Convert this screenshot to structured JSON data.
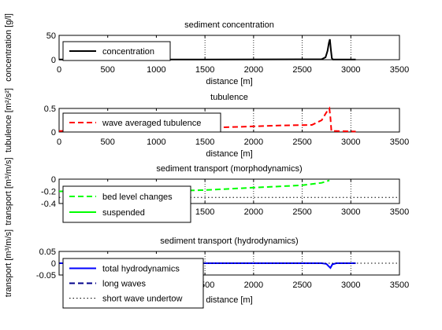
{
  "chart_data": [
    {
      "type": "line",
      "title": "sediment concentration",
      "xlabel": "distance [m]",
      "ylabel": "concentration [g/l]",
      "xlim": [
        0,
        3500
      ],
      "ylim": [
        0,
        50
      ],
      "xticks": [
        "0",
        "500",
        "1000",
        "1500",
        "2000",
        "2500",
        "3000",
        "3500"
      ],
      "yticks": [
        "0",
        "50"
      ],
      "grid_x": [
        1500,
        2000,
        2500,
        3000
      ],
      "legend": "upper-left",
      "series": [
        {
          "name": "concentration",
          "color": "#000000",
          "dash": "solid",
          "x": [
            0,
            500,
            1000,
            1500,
            2000,
            2500,
            2700,
            2740,
            2760,
            2775,
            2785,
            2795,
            2805,
            2815,
            3050
          ],
          "y": [
            0.5,
            0.5,
            0.5,
            0.5,
            0.6,
            0.8,
            1,
            5,
            18,
            35,
            42,
            20,
            3,
            0.5,
            0.5
          ]
        }
      ]
    },
    {
      "type": "line",
      "title": "tubulence",
      "xlabel": "distance [m]",
      "ylabel": "tubulence [m²/s²]",
      "xlim": [
        0,
        3500
      ],
      "ylim": [
        0,
        0.5
      ],
      "xticks": [
        "0",
        "500",
        "1000",
        "1500",
        "2000",
        "2500",
        "3000",
        "3500"
      ],
      "yticks": [
        "0",
        "0.5"
      ],
      "grid_x": [
        1500,
        2000,
        2500,
        3000
      ],
      "legend": "upper-left",
      "series": [
        {
          "name": "wave averaged tubulence",
          "color": "#ff0000",
          "dash": "dashed",
          "x": [
            0,
            500,
            1000,
            1500,
            1700,
            2000,
            2300,
            2600,
            2700,
            2750,
            2780,
            2790,
            2800,
            2850,
            3050
          ],
          "y": [
            0.02,
            0.04,
            0.06,
            0.08,
            0.1,
            0.12,
            0.14,
            0.15,
            0.25,
            0.42,
            0.5,
            0.3,
            0.02,
            0.02,
            0.01
          ]
        }
      ]
    },
    {
      "type": "line",
      "title": "sediment transport (morphodynamics)",
      "xlabel": "",
      "ylabel": "transport [m³/m/s]",
      "xlim": [
        0,
        3500
      ],
      "ylim": [
        -0.4,
        0
      ],
      "xticks": [
        "1500",
        "2000",
        "2500",
        "3000",
        "3500"
      ],
      "yticks": [
        "0",
        "-0.2",
        "-0.4"
      ],
      "grid_x": [
        1500,
        2000,
        2500,
        3000
      ],
      "legend": "lower-left",
      "series": [
        {
          "name": "bed level changes",
          "color": "#00ff00",
          "dash": "dashed",
          "x": [
            0,
            500,
            1000,
            1500,
            2000,
            2500,
            2700,
            2780
          ],
          "y": [
            -0.2,
            -0.2,
            -0.2,
            -0.18,
            -0.14,
            -0.1,
            -0.06,
            -0.02
          ]
        },
        {
          "name": "suspended",
          "color": "#00ff00",
          "dash": "solid",
          "x": [],
          "y": []
        },
        {
          "name": "",
          "color": "#000000",
          "dash": "dotted",
          "x": [
            0,
            3500
          ],
          "y": [
            -0.3,
            -0.3
          ]
        }
      ]
    },
    {
      "type": "line",
      "title": "sediment transport (hydrodynamics)",
      "xlabel": "distance [m]",
      "ylabel": "transport [m³/m/s]",
      "xlim": [
        0,
        3500
      ],
      "ylim": [
        -0.05,
        0.05
      ],
      "xticks": [
        "1500",
        "2000",
        "2500",
        "3000",
        "3500"
      ],
      "yticks": [
        "0.05",
        "0",
        "-0.05"
      ],
      "grid_x": [
        1500,
        2000,
        2500,
        3000
      ],
      "legend": "lower-left",
      "series": [
        {
          "name": "total hydrodynamics",
          "color": "#0000ff",
          "dash": "solid",
          "x": [
            0,
            500,
            1000,
            1500,
            2000,
            2500,
            2700,
            2750,
            2770,
            2790,
            2810,
            2850,
            3050
          ],
          "y": [
            0,
            0,
            0,
            0,
            0,
            0,
            0,
            -0.003,
            -0.012,
            -0.02,
            -0.005,
            0,
            0
          ]
        },
        {
          "name": "long waves",
          "color": "#00008b",
          "dash": "dashed",
          "x": [],
          "y": []
        },
        {
          "name": "short wave undertow",
          "color": "#000000",
          "dash": "dotted",
          "x": [
            0,
            3500
          ],
          "y": [
            0,
            0
          ]
        }
      ]
    }
  ]
}
